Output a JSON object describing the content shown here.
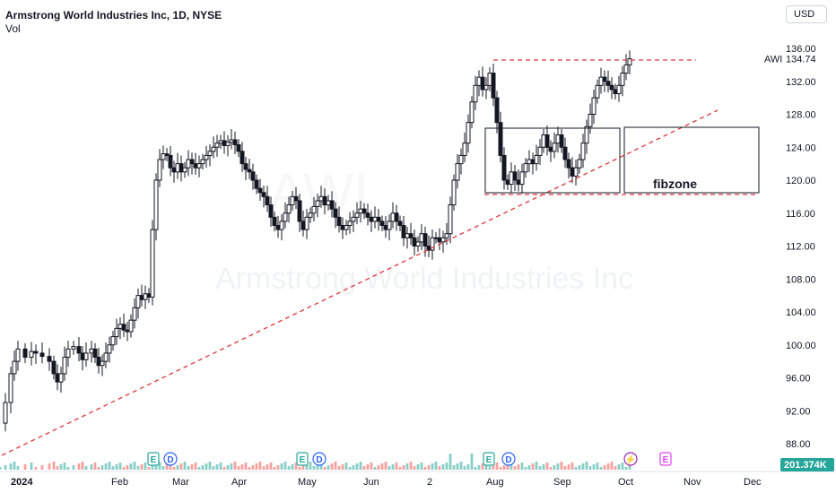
{
  "header": {
    "title": "Armstrong World Industries Inc, 1D, NYSE",
    "vol_label": "Vol"
  },
  "currency_button": "USD",
  "watermark": {
    "company": "Armstrong World Industries Inc",
    "ticker": "AWI"
  },
  "chart_data": {
    "type": "candlestick",
    "symbol": "AWI",
    "last_price": 134.74,
    "last_price_label": "134.74",
    "volume_label": "201.374K",
    "ylim": [
      88,
      136
    ],
    "yticks": [
      136,
      132,
      128,
      124,
      120,
      116,
      112,
      108,
      104,
      100,
      96,
      92,
      88
    ],
    "xticks": [
      "2024",
      "Feb",
      "Mar",
      "Apr",
      "May",
      "Jun",
      "2",
      "Aug",
      "Sep",
      "Oct",
      "Nov",
      "Dec"
    ],
    "price_path": [
      [
        0,
        90.5
      ],
      [
        6,
        93
      ],
      [
        12,
        96.5
      ],
      [
        16,
        98
      ],
      [
        20,
        99.5
      ],
      [
        28,
        98.5
      ],
      [
        35,
        99.2
      ],
      [
        40,
        99
      ],
      [
        47,
        98.6
      ],
      [
        55,
        98
      ],
      [
        60,
        96.5
      ],
      [
        64,
        95.5
      ],
      [
        68,
        96.5
      ],
      [
        72,
        98.5
      ],
      [
        76,
        99.5
      ],
      [
        82,
        99.8
      ],
      [
        88,
        99
      ],
      [
        92,
        98.2
      ],
      [
        96,
        99
      ],
      [
        102,
        99.5
      ],
      [
        106,
        98.5
      ],
      [
        110,
        97.5
      ],
      [
        114,
        98
      ],
      [
        118,
        99
      ],
      [
        122,
        100
      ],
      [
        126,
        101
      ],
      [
        130,
        102
      ],
      [
        134,
        102.5
      ],
      [
        138,
        101.8
      ],
      [
        142,
        101.6
      ],
      [
        146,
        103
      ],
      [
        150,
        104.5
      ],
      [
        154,
        106
      ],
      [
        158,
        105.5
      ],
      [
        162,
        106.2
      ],
      [
        166,
        105.8
      ],
      [
        170,
        114
      ],
      [
        174,
        120
      ],
      [
        178,
        122.5
      ],
      [
        182,
        123.2
      ],
      [
        186,
        123
      ],
      [
        190,
        121.5
      ],
      [
        194,
        121
      ],
      [
        198,
        122
      ],
      [
        202,
        121
      ],
      [
        206,
        121.5
      ],
      [
        210,
        122.5
      ],
      [
        214,
        122
      ],
      [
        218,
        121.5
      ],
      [
        222,
        122
      ],
      [
        226,
        122.5
      ],
      [
        230,
        123
      ],
      [
        234,
        123.5
      ],
      [
        238,
        124
      ],
      [
        242,
        124.5
      ],
      [
        246,
        124.8
      ],
      [
        250,
        124.2
      ],
      [
        254,
        124.6
      ],
      [
        258,
        124.9
      ],
      [
        262,
        124.3
      ],
      [
        266,
        123.5
      ],
      [
        270,
        122
      ],
      [
        274,
        121.3
      ],
      [
        278,
        121
      ],
      [
        282,
        120
      ],
      [
        286,
        119
      ],
      [
        290,
        118.5
      ],
      [
        294,
        118
      ],
      [
        298,
        117
      ],
      [
        302,
        115.5
      ],
      [
        306,
        114.5
      ],
      [
        310,
        114
      ],
      [
        314,
        115
      ],
      [
        318,
        116
      ],
      [
        322,
        117
      ],
      [
        326,
        118
      ],
      [
        330,
        117.5
      ],
      [
        334,
        115
      ],
      [
        338,
        114
      ],
      [
        342,
        115.5
      ],
      [
        346,
        116
      ],
      [
        350,
        116.8
      ],
      [
        354,
        117.5
      ],
      [
        358,
        118
      ],
      [
        362,
        117
      ],
      [
        366,
        117.5
      ],
      [
        370,
        116.5
      ],
      [
        374,
        115.5
      ],
      [
        378,
        114.5
      ],
      [
        382,
        114
      ],
      [
        386,
        114.5
      ],
      [
        390,
        115
      ],
      [
        394,
        115.5
      ],
      [
        398,
        116
      ],
      [
        402,
        116.5
      ],
      [
        406,
        116
      ],
      [
        410,
        115.5
      ],
      [
        414,
        115
      ],
      [
        418,
        115.5
      ],
      [
        422,
        115
      ],
      [
        426,
        114.5
      ],
      [
        430,
        114
      ],
      [
        434,
        115
      ],
      [
        438,
        116
      ],
      [
        442,
        115
      ],
      [
        446,
        114.5
      ],
      [
        450,
        113
      ],
      [
        454,
        113.5
      ],
      [
        458,
        113
      ],
      [
        462,
        112
      ],
      [
        466,
        112.5
      ],
      [
        470,
        113.5
      ],
      [
        474,
        112
      ],
      [
        478,
        111.5
      ],
      [
        482,
        113
      ],
      [
        486,
        113
      ],
      [
        490,
        112.5
      ],
      [
        494,
        113
      ],
      [
        498,
        113.5
      ],
      [
        502,
        117
      ],
      [
        506,
        120
      ],
      [
        510,
        122
      ],
      [
        514,
        123
      ],
      [
        518,
        124.5
      ],
      [
        522,
        127
      ],
      [
        526,
        129.5
      ],
      [
        530,
        131.5
      ],
      [
        534,
        132.5
      ],
      [
        538,
        131
      ],
      [
        542,
        131.5
      ],
      [
        546,
        133
      ],
      [
        550,
        130
      ],
      [
        554,
        127
      ],
      [
        558,
        123
      ],
      [
        562,
        120
      ],
      [
        566,
        119.5
      ],
      [
        570,
        121
      ],
      [
        574,
        120
      ],
      [
        578,
        119.5
      ],
      [
        582,
        121
      ],
      [
        586,
        122
      ],
      [
        590,
        122.5
      ],
      [
        594,
        122
      ],
      [
        598,
        123
      ],
      [
        602,
        124
      ],
      [
        606,
        125.5
      ],
      [
        610,
        124
      ],
      [
        614,
        123.5
      ],
      [
        618,
        124.5
      ],
      [
        622,
        125.5
      ],
      [
        626,
        124
      ],
      [
        630,
        122.5
      ],
      [
        634,
        121.5
      ],
      [
        638,
        120.5
      ],
      [
        642,
        121.5
      ],
      [
        646,
        122.5
      ],
      [
        650,
        124.5
      ],
      [
        654,
        126.5
      ],
      [
        658,
        128
      ],
      [
        662,
        130
      ],
      [
        666,
        131.5
      ],
      [
        670,
        132.5
      ],
      [
        674,
        132
      ],
      [
        678,
        131.5
      ],
      [
        682,
        131
      ],
      [
        686,
        130.5
      ],
      [
        690,
        131.5
      ],
      [
        694,
        133
      ],
      [
        698,
        134
      ],
      [
        702,
        134.74
      ]
    ]
  },
  "annotations": {
    "box_label": "fibzone",
    "event_markers": [
      {
        "letter": "E",
        "kind": "earnings"
      },
      {
        "letter": "D",
        "kind": "dividend"
      },
      {
        "letter": "E",
        "kind": "earnings"
      },
      {
        "letter": "D",
        "kind": "dividend"
      },
      {
        "letter": "E",
        "kind": "earnings"
      },
      {
        "letter": "D",
        "kind": "dividend"
      },
      {
        "letter": "⚡",
        "kind": "split"
      },
      {
        "letter": "E",
        "kind": "earnings"
      }
    ]
  },
  "colors": {
    "up": "#26a69a",
    "down": "#ef5350",
    "candle": "#131722",
    "trend": "#e0363f",
    "axis_text": "#131722"
  }
}
